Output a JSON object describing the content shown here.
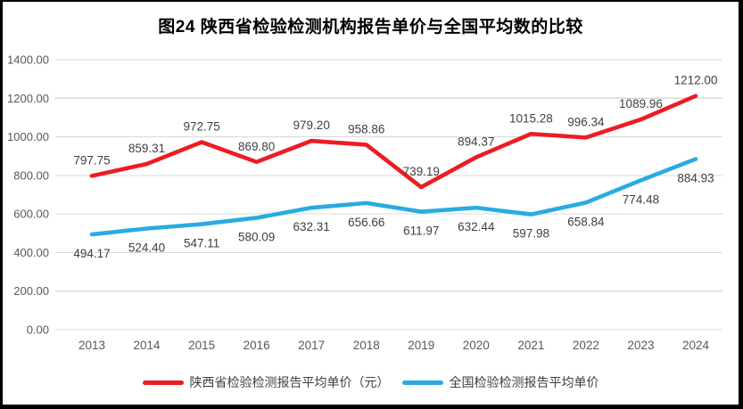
{
  "figure": {
    "background": "#ffffff",
    "border_color": "#000000"
  },
  "chart_data": {
    "type": "line",
    "title": "图24 陕西省检验检测机构报告单价与全国平均数的比较",
    "categories": [
      "2013",
      "2014",
      "2015",
      "2016",
      "2017",
      "2018",
      "2019",
      "2020",
      "2021",
      "2022",
      "2023",
      "2024"
    ],
    "series": [
      {
        "name": "陕西省检验检测报告平均单价（元）",
        "color": "#ed1c24",
        "label_position": "above",
        "values": [
          797.75,
          859.31,
          972.75,
          869.8,
          979.2,
          958.86,
          739.19,
          894.37,
          1015.28,
          996.34,
          1089.96,
          1212.0
        ],
        "labels": [
          "797.75",
          "859.31",
          "972.75",
          "869.80",
          "979.20",
          "958.86",
          "739.19",
          "894.37",
          "1015.28",
          "996.34",
          "1089.96",
          "1212.00"
        ]
      },
      {
        "name": "全国检验检测报告平均单价",
        "color": "#29abe2",
        "label_position": "below",
        "values": [
          494.17,
          524.4,
          547.11,
          580.09,
          632.31,
          656.66,
          611.97,
          632.44,
          597.98,
          658.84,
          774.48,
          884.93
        ],
        "labels": [
          "494.17",
          "524.40",
          "547.11",
          "580.09",
          "632.31",
          "656.66",
          "611.97",
          "632.44",
          "597.98",
          "658.84",
          "774.48",
          "884.93"
        ]
      }
    ],
    "y_axis": {
      "min": 0,
      "max": 1400,
      "step": 200,
      "tick_labels": [
        "0.00",
        "200.00",
        "400.00",
        "600.00",
        "800.00",
        "1000.00",
        "1200.00",
        "1400.00"
      ]
    },
    "xlabel": "",
    "ylabel": "",
    "grid": true,
    "legend_position": "bottom",
    "gridline_color": "#d9d9d9",
    "axis_text_color": "#595959",
    "data_label_color": "#3f3f3f"
  }
}
